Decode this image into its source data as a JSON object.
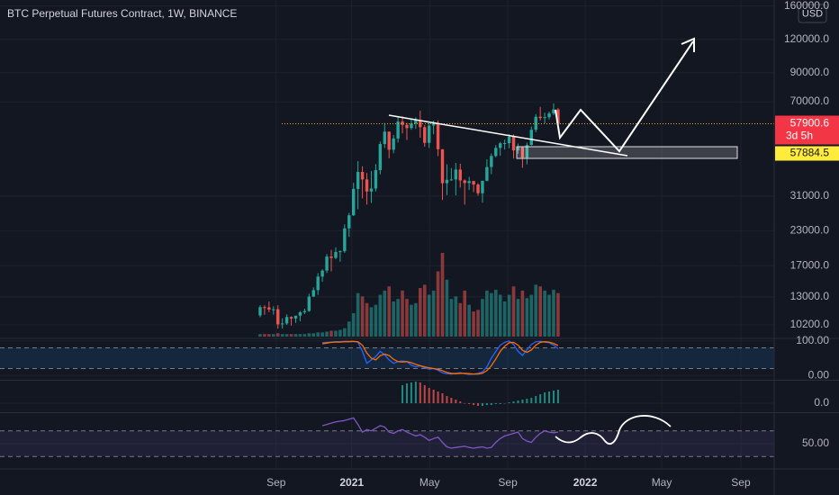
{
  "chart_data": [
    {
      "type": "candlestick",
      "title": "BTC Perpetual Futures Contract, 1W, BINANCE",
      "currency": "USD",
      "log_scale": true,
      "ylim": [
        9150,
        168500
      ],
      "xlim": [
        -58.5,
        115.6
      ],
      "yticks": [
        {
          "value": 160000,
          "label": "160000.0"
        },
        {
          "value": 120000,
          "label": "120000.0"
        },
        {
          "value": 90000,
          "label": "90000.0"
        },
        {
          "value": 70000,
          "label": "70000.0"
        },
        {
          "value": 31000,
          "label": "31000.0"
        },
        {
          "value": 23000,
          "label": "23000.0"
        },
        {
          "value": 17000,
          "label": "17000.0"
        },
        {
          "value": 13000,
          "label": "13000.0"
        },
        {
          "value": 10200,
          "label": "10200.0"
        }
      ],
      "xticks": [
        {
          "value": 3.6,
          "label": "Sep"
        },
        {
          "value": 20.6,
          "label": "2021"
        },
        {
          "value": 38.1,
          "label": "May"
        },
        {
          "value": 55.7,
          "label": "Sep"
        },
        {
          "value": 73.1,
          "label": "2022"
        },
        {
          "value": 90.3,
          "label": "May"
        },
        {
          "value": 108.1,
          "label": "Sep"
        }
      ],
      "up_color": "#26a69a",
      "down_color": "#ef5350",
      "price_line_color": "#f7a600",
      "open": [
        11070,
        11890,
        11860,
        11650,
        11680,
        10250,
        10330,
        10920,
        10780,
        11050,
        11380,
        11500,
        13030,
        13770,
        15480,
        16300,
        18400,
        18190,
        19150,
        19270,
        23480,
        26270,
        33000,
        38200,
        35800,
        32260,
        33100,
        38800,
        48600,
        54080,
        46270,
        50970,
        59000,
        57350,
        55780,
        58000,
        59770,
        56220,
        49100,
        57000,
        58240,
        46450,
        34650,
        35700,
        35800,
        39000,
        35500,
        34700,
        35300,
        34260,
        31780,
        35400,
        39850,
        43830,
        47000,
        48900,
        49000,
        51780,
        46000,
        47250,
        43200,
        48200,
        54950,
        61500,
        60850,
        61300,
        63300,
        65500
      ],
      "high": [
        12090,
        12080,
        12480,
        11970,
        12090,
        10800,
        11180,
        10990,
        10970,
        11490,
        11730,
        13350,
        14100,
        15950,
        16500,
        18800,
        19500,
        19920,
        19420,
        24300,
        26800,
        34800,
        41950,
        40100,
        37850,
        38500,
        40900,
        49700,
        58300,
        54200,
        52600,
        61800,
        61700,
        58400,
        60200,
        61200,
        64850,
        57300,
        58400,
        59500,
        59600,
        46500,
        40800,
        39500,
        41300,
        41000,
        35800,
        36600,
        35400,
        34650,
        35400,
        42600,
        44800,
        48150,
        49500,
        50500,
        52950,
        52800,
        48800,
        47400,
        49200,
        56600,
        62900,
        67000,
        63700,
        64300,
        69000,
        66300
      ],
      "low": [
        10900,
        11120,
        11380,
        11140,
        9880,
        9880,
        10200,
        10140,
        10380,
        10520,
        11200,
        11420,
        12960,
        13220,
        14800,
        15960,
        16200,
        18000,
        17600,
        19000,
        21800,
        26100,
        27700,
        30400,
        28800,
        29240,
        32300,
        37400,
        47000,
        43000,
        44900,
        49200,
        53300,
        50300,
        55000,
        55400,
        51300,
        47500,
        47000,
        52900,
        43800,
        30000,
        31300,
        35400,
        31200,
        33400,
        28800,
        32700,
        32100,
        31100,
        29300,
        35200,
        37500,
        43350,
        43950,
        46350,
        46900,
        42850,
        44700,
        39600,
        40800,
        48000,
        53800,
        59600,
        58100,
        60100,
        62300,
        55600
      ],
      "close": [
        11890,
        11860,
        11650,
        11680,
        10250,
        10330,
        10920,
        10780,
        11050,
        11380,
        11500,
        13030,
        13770,
        15480,
        16300,
        18400,
        18190,
        19150,
        19270,
        23480,
        26270,
        33000,
        38200,
        35800,
        32260,
        33100,
        38800,
        48600,
        54080,
        46270,
        50970,
        59000,
        57350,
        55780,
        58000,
        59770,
        56220,
        49100,
        57000,
        58240,
        46450,
        34650,
        35700,
        35800,
        39000,
        35500,
        34700,
        35300,
        34260,
        31780,
        35400,
        39850,
        43830,
        47000,
        48900,
        49000,
        51780,
        46000,
        47250,
        43200,
        48200,
        54950,
        61500,
        60850,
        61300,
        63300,
        65500,
        57900.6
      ],
      "volume": [
        3,
        3,
        3,
        3,
        4,
        3,
        3,
        3,
        3,
        3,
        3,
        4,
        4,
        5,
        5,
        6,
        7,
        7,
        8,
        10,
        18,
        28,
        52,
        48,
        40,
        35,
        38,
        50,
        55,
        60,
        42,
        45,
        55,
        45,
        38,
        40,
        58,
        62,
        50,
        55,
        78,
        100,
        68,
        45,
        48,
        40,
        55,
        38,
        30,
        32,
        45,
        55,
        52,
        56,
        50,
        42,
        50,
        60,
        45,
        55,
        46,
        50,
        62,
        60,
        55,
        50,
        56,
        52
      ],
      "countdown": "3d 5h",
      "alert_price": 57884.5
    },
    {
      "type": "line",
      "ylim": [
        -12.8,
        105
      ],
      "yticks": [
        {
          "value": 100,
          "label": "100.00"
        },
        {
          "value": 0,
          "label": "0.00"
        }
      ],
      "bands": [
        20,
        80
      ],
      "band_color": "rgba(33,150,243,0.13)",
      "series": [
        {
          "color": "#2962ff",
          "values": [
            null,
            null,
            null,
            null,
            null,
            null,
            null,
            null,
            null,
            null,
            null,
            null,
            null,
            null,
            95,
            96,
            97,
            98,
            98,
            99,
            99,
            99,
            97,
            70,
            35,
            45,
            55,
            70,
            60,
            45,
            35,
            40,
            42,
            40,
            30,
            25,
            28,
            22,
            18,
            20,
            15,
            8,
            5,
            4,
            6,
            8,
            5,
            3,
            4,
            6,
            10,
            25,
            50,
            70,
            88,
            96,
            100,
            90,
            70,
            58,
            75,
            90,
            98,
            99,
            97,
            95,
            88,
            78
          ]
        },
        {
          "color": "#ff6d00",
          "values": [
            null,
            null,
            null,
            null,
            null,
            null,
            null,
            null,
            null,
            null,
            null,
            null,
            null,
            null,
            92,
            94,
            96,
            97,
            97,
            98,
            98,
            99,
            98,
            88,
            65,
            50,
            45,
            57,
            62,
            58,
            47,
            40,
            39,
            40,
            37,
            32,
            28,
            25,
            22,
            20,
            18,
            14,
            9,
            6,
            5,
            6,
            6,
            5,
            4,
            4,
            6,
            14,
            28,
            48,
            70,
            85,
            95,
            96,
            88,
            73,
            67,
            74,
            88,
            96,
            98,
            97,
            93,
            87
          ]
        }
      ]
    },
    {
      "type": "histogram",
      "ylim": [
        -10,
        25
      ],
      "yticks": [
        {
          "value": 0,
          "label": "0.0"
        }
      ],
      "up_color": "#26a69a",
      "down_color": "#ef5350",
      "values": [
        null,
        null,
        null,
        null,
        null,
        null,
        null,
        null,
        null,
        null,
        null,
        null,
        null,
        null,
        null,
        null,
        null,
        null,
        null,
        null,
        null,
        null,
        null,
        null,
        null,
        null,
        null,
        null,
        null,
        null,
        null,
        null,
        20,
        22,
        23,
        24,
        23,
        20,
        17,
        15,
        13,
        11,
        8,
        6,
        4,
        2,
        0,
        -1,
        -2,
        -3,
        -3,
        -2,
        -2,
        -1,
        -1,
        0,
        1,
        2,
        3,
        4,
        5,
        6,
        8,
        10,
        12,
        13,
        14,
        15
      ]
    },
    {
      "type": "line",
      "ylim": [
        12.1,
        97.6
      ],
      "yticks": [
        {
          "value": 50,
          "label": "50.00"
        }
      ],
      "bands": [
        30,
        70
      ],
      "band_color": "rgba(126,87,194,0.12)",
      "series": [
        {
          "color": "#7e57c2",
          "values": [
            null,
            null,
            null,
            null,
            null,
            null,
            null,
            null,
            null,
            null,
            null,
            null,
            null,
            null,
            78,
            80,
            82,
            84,
            85,
            86,
            88,
            90,
            80,
            68,
            72,
            70,
            74,
            78,
            76,
            68,
            66,
            70,
            72,
            68,
            65,
            62,
            64,
            60,
            55,
            58,
            60,
            52,
            45,
            43,
            44,
            45,
            46,
            44,
            43,
            44,
            45,
            43,
            44,
            52,
            58,
            62,
            64,
            66,
            68,
            58,
            54,
            52,
            60,
            66,
            70,
            68,
            67,
            68
          ]
        }
      ]
    }
  ]
}
